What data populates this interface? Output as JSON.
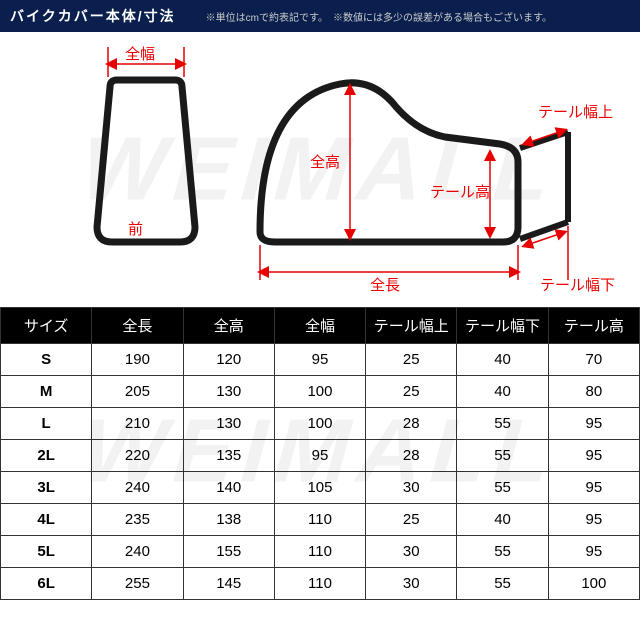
{
  "header": {
    "title": "バイクカバー本体/寸法",
    "note": "※単位はcmで約表記です。　※数値には多少の誤差がある場合もございます。"
  },
  "watermark": "WEIMALL",
  "diagram": {
    "labels": {
      "width": "全幅",
      "front": "前",
      "height": "全高",
      "length": "全長",
      "tail_width_top": "テール幅上",
      "tail_width_bottom": "テール幅下",
      "tail_height": "テール高"
    },
    "colors": {
      "shape_stroke": "#1a1a1a",
      "shape_stroke_width": 7,
      "dim_color": "#e60000",
      "dim_stroke_width": 1.5
    }
  },
  "table": {
    "columns": [
      "サイズ",
      "全長",
      "全高",
      "全幅",
      "テール幅上",
      "テール幅下",
      "テール高"
    ],
    "column_widths": [
      "14%",
      "14%",
      "14%",
      "14%",
      "15%",
      "15%",
      "14%"
    ],
    "rows": [
      [
        "S",
        "190",
        "120",
        "95",
        "25",
        "40",
        "70"
      ],
      [
        "M",
        "205",
        "130",
        "100",
        "25",
        "40",
        "80"
      ],
      [
        "L",
        "210",
        "130",
        "100",
        "28",
        "55",
        "95"
      ],
      [
        "2L",
        "220",
        "135",
        "95",
        "28",
        "55",
        "95"
      ],
      [
        "3L",
        "240",
        "140",
        "105",
        "30",
        "55",
        "95"
      ],
      [
        "4L",
        "235",
        "138",
        "110",
        "25",
        "40",
        "95"
      ],
      [
        "5L",
        "240",
        "155",
        "110",
        "30",
        "55",
        "95"
      ],
      [
        "6L",
        "255",
        "145",
        "110",
        "30",
        "55",
        "100"
      ]
    ],
    "header_bg": "#000000",
    "header_fg": "#ffffff",
    "border_color": "#333333"
  }
}
